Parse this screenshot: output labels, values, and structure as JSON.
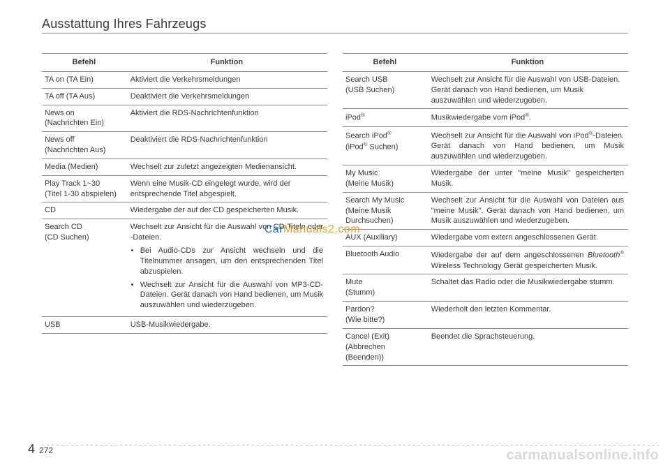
{
  "header": "Ausstattung Ihres Fahrzeugs",
  "colors": {
    "text": "#3a3a3a",
    "rule": "#8a8a8a",
    "watermark_blue": "#1f6db5",
    "watermark_gold": "#dba23a",
    "footer_watermark": "#d9d9d9",
    "dash": "#bdbdbd",
    "background": "#ffffff"
  },
  "typography": {
    "header_fontsize": 18,
    "table_fontsize": 11,
    "watermark_fontsize": 16,
    "footer_watermark_fontsize": 20
  },
  "table_header": {
    "befehl": "Befehl",
    "funktion": "Funktion"
  },
  "left_table": [
    {
      "befehl": "TA on (TA Ein)",
      "funktion": "Aktiviert die Verkehrsmeldungen"
    },
    {
      "befehl": "TA off (TA Aus)",
      "funktion": "Deaktiviert die Verkehrsmeldungen"
    },
    {
      "befehl": "News on\n(Nachrichten Ein)",
      "funktion": "Aktiviert die RDS-Nachrichtenfunktion"
    },
    {
      "befehl": "News off\n(Nachrichten Aus)",
      "funktion": "Deaktiviert die RDS-Nachrichtenfunktion"
    },
    {
      "befehl": "Media (Medien)",
      "funktion_justify": true,
      "funktion": "Wechselt zur zuletzt angezeigten Medienansicht."
    },
    {
      "befehl": "Play Track 1~30\n(Titel 1-30 abspielen)",
      "funktion": "Wenn eine Musik-CD eingelegt wurde, wird der entsprechende Titel abgespielt."
    },
    {
      "befehl": " CD",
      "funktion_justify": true,
      "funktion": "Wiedergabe der auf der CD gespeicherten Musik."
    },
    {
      "befehl": "Search CD\n(CD Suchen)",
      "funktion_intro_justify": true,
      "funktion_intro": "Wechselt zur Ansicht für die Auswahl von CD-Titeln oder -Dateien.",
      "bullets": [
        "Bei Audio-CDs zur Ansicht wechseln und die Titelnummer ansagen, um den entsprechenden Titel abzuspielen.",
        "Wechselt zur Ansicht für die Auswahl von MP3-CD-Dateien. Gerät danach von Hand bedienen, um Musik auszuwählen und wiederzugeben."
      ]
    },
    {
      "befehl": "USB",
      "funktion": "USB-Musikwiedergabe."
    }
  ],
  "right_table": [
    {
      "befehl": "Search USB\n(USB Suchen)",
      "funktion": "Wechselt zur Ansicht für die Auswahl von USB-Dateien. Gerät danach von Hand bedienen, um Musik auszuwählen und wiederzugeben."
    },
    {
      "befehl_html": "iPod<sup>®</sup>",
      "funktion_html": "Musikwiedergabe vom iPod<sup>®</sup>."
    },
    {
      "befehl_html": "Search iPod<sup>®</sup><br>(iPod<sup>®</sup> Suchen)",
      "funktion_justify": true,
      "funktion_html": "Wechselt zur Ansicht für die Auswahl von iPod<sup>®</sup>-Dateien. Gerät danach von Hand bedienen, um Musik auszuwählen und wiederzugeben."
    },
    {
      "befehl": "My Music\n(Meine Musik)",
      "funktion_justify": true,
      "funktion": "Wiedergabe der unter \"meine Musik\" gespeicherten Musik."
    },
    {
      "befehl": "Search My Music\n(Meine Musik Durchsuchen)",
      "funktion_justify": true,
      "funktion": "Wechselt zur Ansicht für die Auswahl von Dateien aus \"meine Musik\". Gerät danach von Hand bedienen, um Musik auszuwählen und wiederzugeben."
    },
    {
      "befehl": "AUX (Auxiliary)",
      "funktion_justify": true,
      "funktion": "Wiedergabe vom extern angeschlossenen Gerät."
    },
    {
      "befehl": "Bluetooth Audio",
      "funktion_justify": true,
      "funktion_html": "Wiedergabe der auf dem angeschlossenen <i>Bluetooth</i><sup>®</sup> Wireless Technology Gerät gespeicherten Musik."
    },
    {
      "befehl": "Mute\n(Stumm)",
      "funktion": "Schaltet das Radio oder die Musikwiedergabe stumm."
    },
    {
      "befehl": "Pardon?\n(Wie bitte?)",
      "funktion": "Wiederholt den letzten Kommentar."
    },
    {
      "befehl": "Cancel (Exit)\n(Abbrechen (Beenden))",
      "funktion": "Beendet die Sprachsteuerung."
    }
  ],
  "watermark": {
    "part1": "Car",
    "part2": "Manuals2.com"
  },
  "footer_watermark": "carmanualsonline.info",
  "page_foot": {
    "chapter": "4",
    "pagenum": "272"
  }
}
